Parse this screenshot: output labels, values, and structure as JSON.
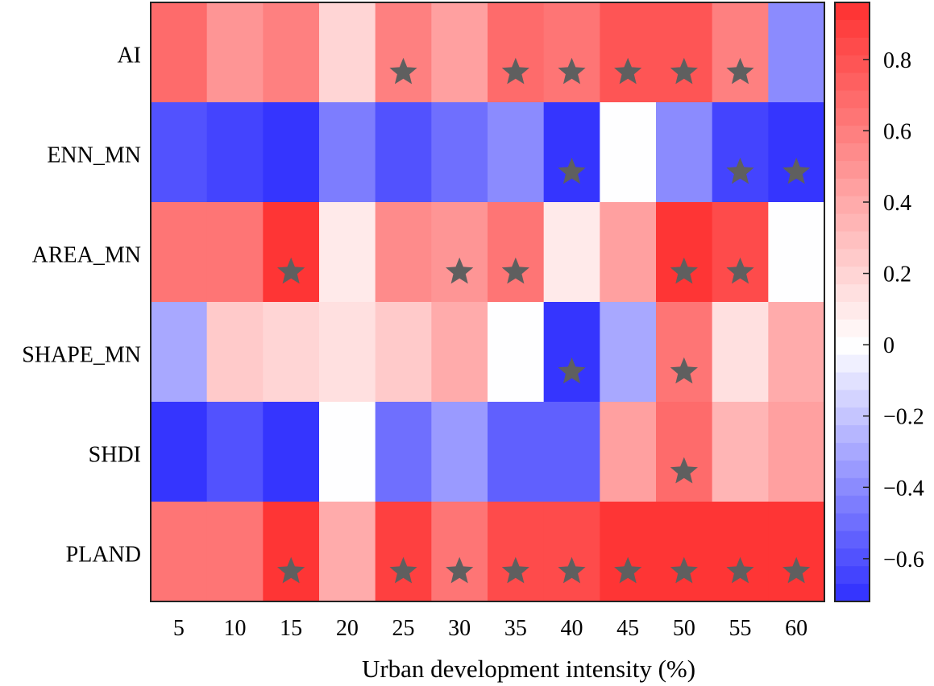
{
  "chart_data": {
    "type": "heatmap",
    "xlabel": "Urban development intensity (%)",
    "ylabel": "",
    "x": [
      "5",
      "10",
      "15",
      "20",
      "25",
      "30",
      "35",
      "40",
      "45",
      "50",
      "55",
      "60"
    ],
    "y": [
      "AI",
      "ENN_MN",
      "AREA_MN",
      "SHAPE_MN",
      "SHDI",
      "PLAND"
    ],
    "values": [
      [
        0.7,
        0.48,
        0.58,
        0.17,
        0.6,
        0.44,
        0.68,
        0.64,
        0.8,
        0.8,
        0.6,
        -0.42
      ],
      [
        -0.62,
        -0.66,
        -0.76,
        -0.46,
        -0.6,
        -0.48,
        -0.38,
        -0.78,
        0.02,
        -0.42,
        -0.64,
        -0.74
      ],
      [
        0.66,
        0.62,
        0.92,
        0.1,
        0.52,
        0.48,
        0.62,
        0.1,
        0.44,
        0.92,
        0.86,
        -0.02
      ],
      [
        -0.32,
        0.24,
        0.2,
        0.14,
        0.26,
        0.38,
        0.0,
        -0.74,
        -0.28,
        0.64,
        0.14,
        0.4
      ],
      [
        -0.78,
        -0.62,
        -0.68,
        -0.02,
        -0.48,
        -0.36,
        -0.56,
        -0.56,
        0.44,
        0.7,
        0.32,
        0.46
      ],
      [
        0.66,
        0.62,
        0.92,
        0.38,
        0.88,
        0.62,
        0.86,
        0.82,
        0.94,
        0.94,
        0.94,
        0.94
      ]
    ],
    "significant": [
      [
        false,
        false,
        false,
        false,
        true,
        false,
        true,
        true,
        true,
        true,
        true,
        false
      ],
      [
        false,
        false,
        false,
        false,
        false,
        false,
        false,
        true,
        false,
        false,
        true,
        true
      ],
      [
        false,
        false,
        true,
        false,
        false,
        true,
        true,
        false,
        false,
        true,
        true,
        false
      ],
      [
        false,
        false,
        false,
        false,
        false,
        false,
        false,
        true,
        false,
        true,
        false,
        false
      ],
      [
        false,
        false,
        false,
        false,
        false,
        false,
        false,
        false,
        false,
        true,
        false,
        false
      ],
      [
        false,
        false,
        true,
        false,
        true,
        true,
        true,
        true,
        true,
        true,
        true,
        true
      ]
    ],
    "colorbar": {
      "range": [
        -0.72,
        0.96
      ],
      "ticks": [
        0.8,
        0.6,
        0.4,
        0.2,
        0,
        -0.2,
        -0.4,
        -0.6
      ],
      "tick_labels": [
        "0.8",
        "0.6",
        "0.4",
        "0.2",
        "0",
        "−0.2",
        "−0.4",
        "−0.6"
      ],
      "steps": 34
    },
    "colors": {
      "negative": "#2e2efe",
      "neutral": "#ffffff",
      "positive": "#fe3030",
      "marker": "#5f5f5f"
    },
    "marker_icon": "star-icon"
  }
}
